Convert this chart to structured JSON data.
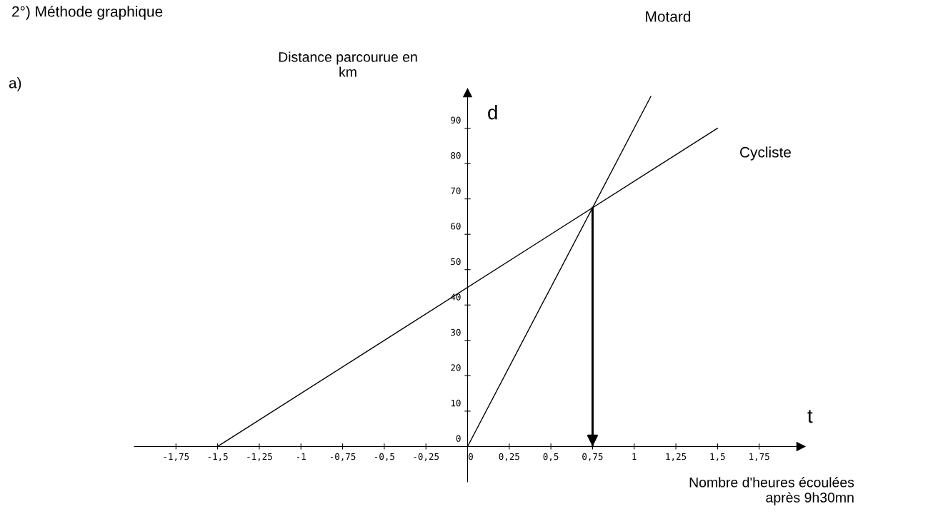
{
  "chart_data": {
    "type": "line",
    "title": "2°) Méthode graphique",
    "xlabel": "Nombre d'heures écoulées\naprès 9h30mn",
    "ylabel": "Distance parcourue en\nkm",
    "annotations": [
      "a)",
      "d",
      "t"
    ],
    "series": [
      {
        "name": "Motard",
        "color": "#000000",
        "x": [
          0,
          1.1
        ],
        "values": [
          0,
          99
        ]
      },
      {
        "name": "Cycliste",
        "color": "#000000",
        "x": [
          -1.5,
          1.5
        ],
        "values": [
          0,
          90
        ]
      },
      {
        "color": "#000000",
        "x": [
          0.75,
          0.75
        ],
        "values": [
          67.5,
          0
        ]
      }
    ],
    "xlim": [
      -2,
      2
    ],
    "ylim": [
      -10,
      100
    ],
    "xticks": [
      {
        "value": -1.75,
        "label": "-1,75"
      },
      {
        "value": -1.5,
        "label": "-1,5"
      },
      {
        "value": -1.25,
        "label": "-1,25"
      },
      -1,
      {
        "value": -0.75,
        "label": "-0,75"
      },
      {
        "value": -0.5,
        "label": "-0,5"
      },
      {
        "value": -0.25,
        "label": "-0,25"
      },
      0,
      {
        "value": 0.25,
        "label": "0,25"
      },
      {
        "value": 0.5,
        "label": "0,5"
      },
      {
        "value": 0.75,
        "label": "0,75"
      },
      1,
      {
        "value": 1.25,
        "label": "1,25"
      },
      {
        "value": 1.5,
        "label": "1,5"
      },
      {
        "value": 1.75,
        "label": "1,75"
      }
    ],
    "yticks": [
      0,
      10,
      20,
      30,
      40,
      50,
      60,
      70,
      80,
      90
    ],
    "grid": false,
    "legend": false
  }
}
